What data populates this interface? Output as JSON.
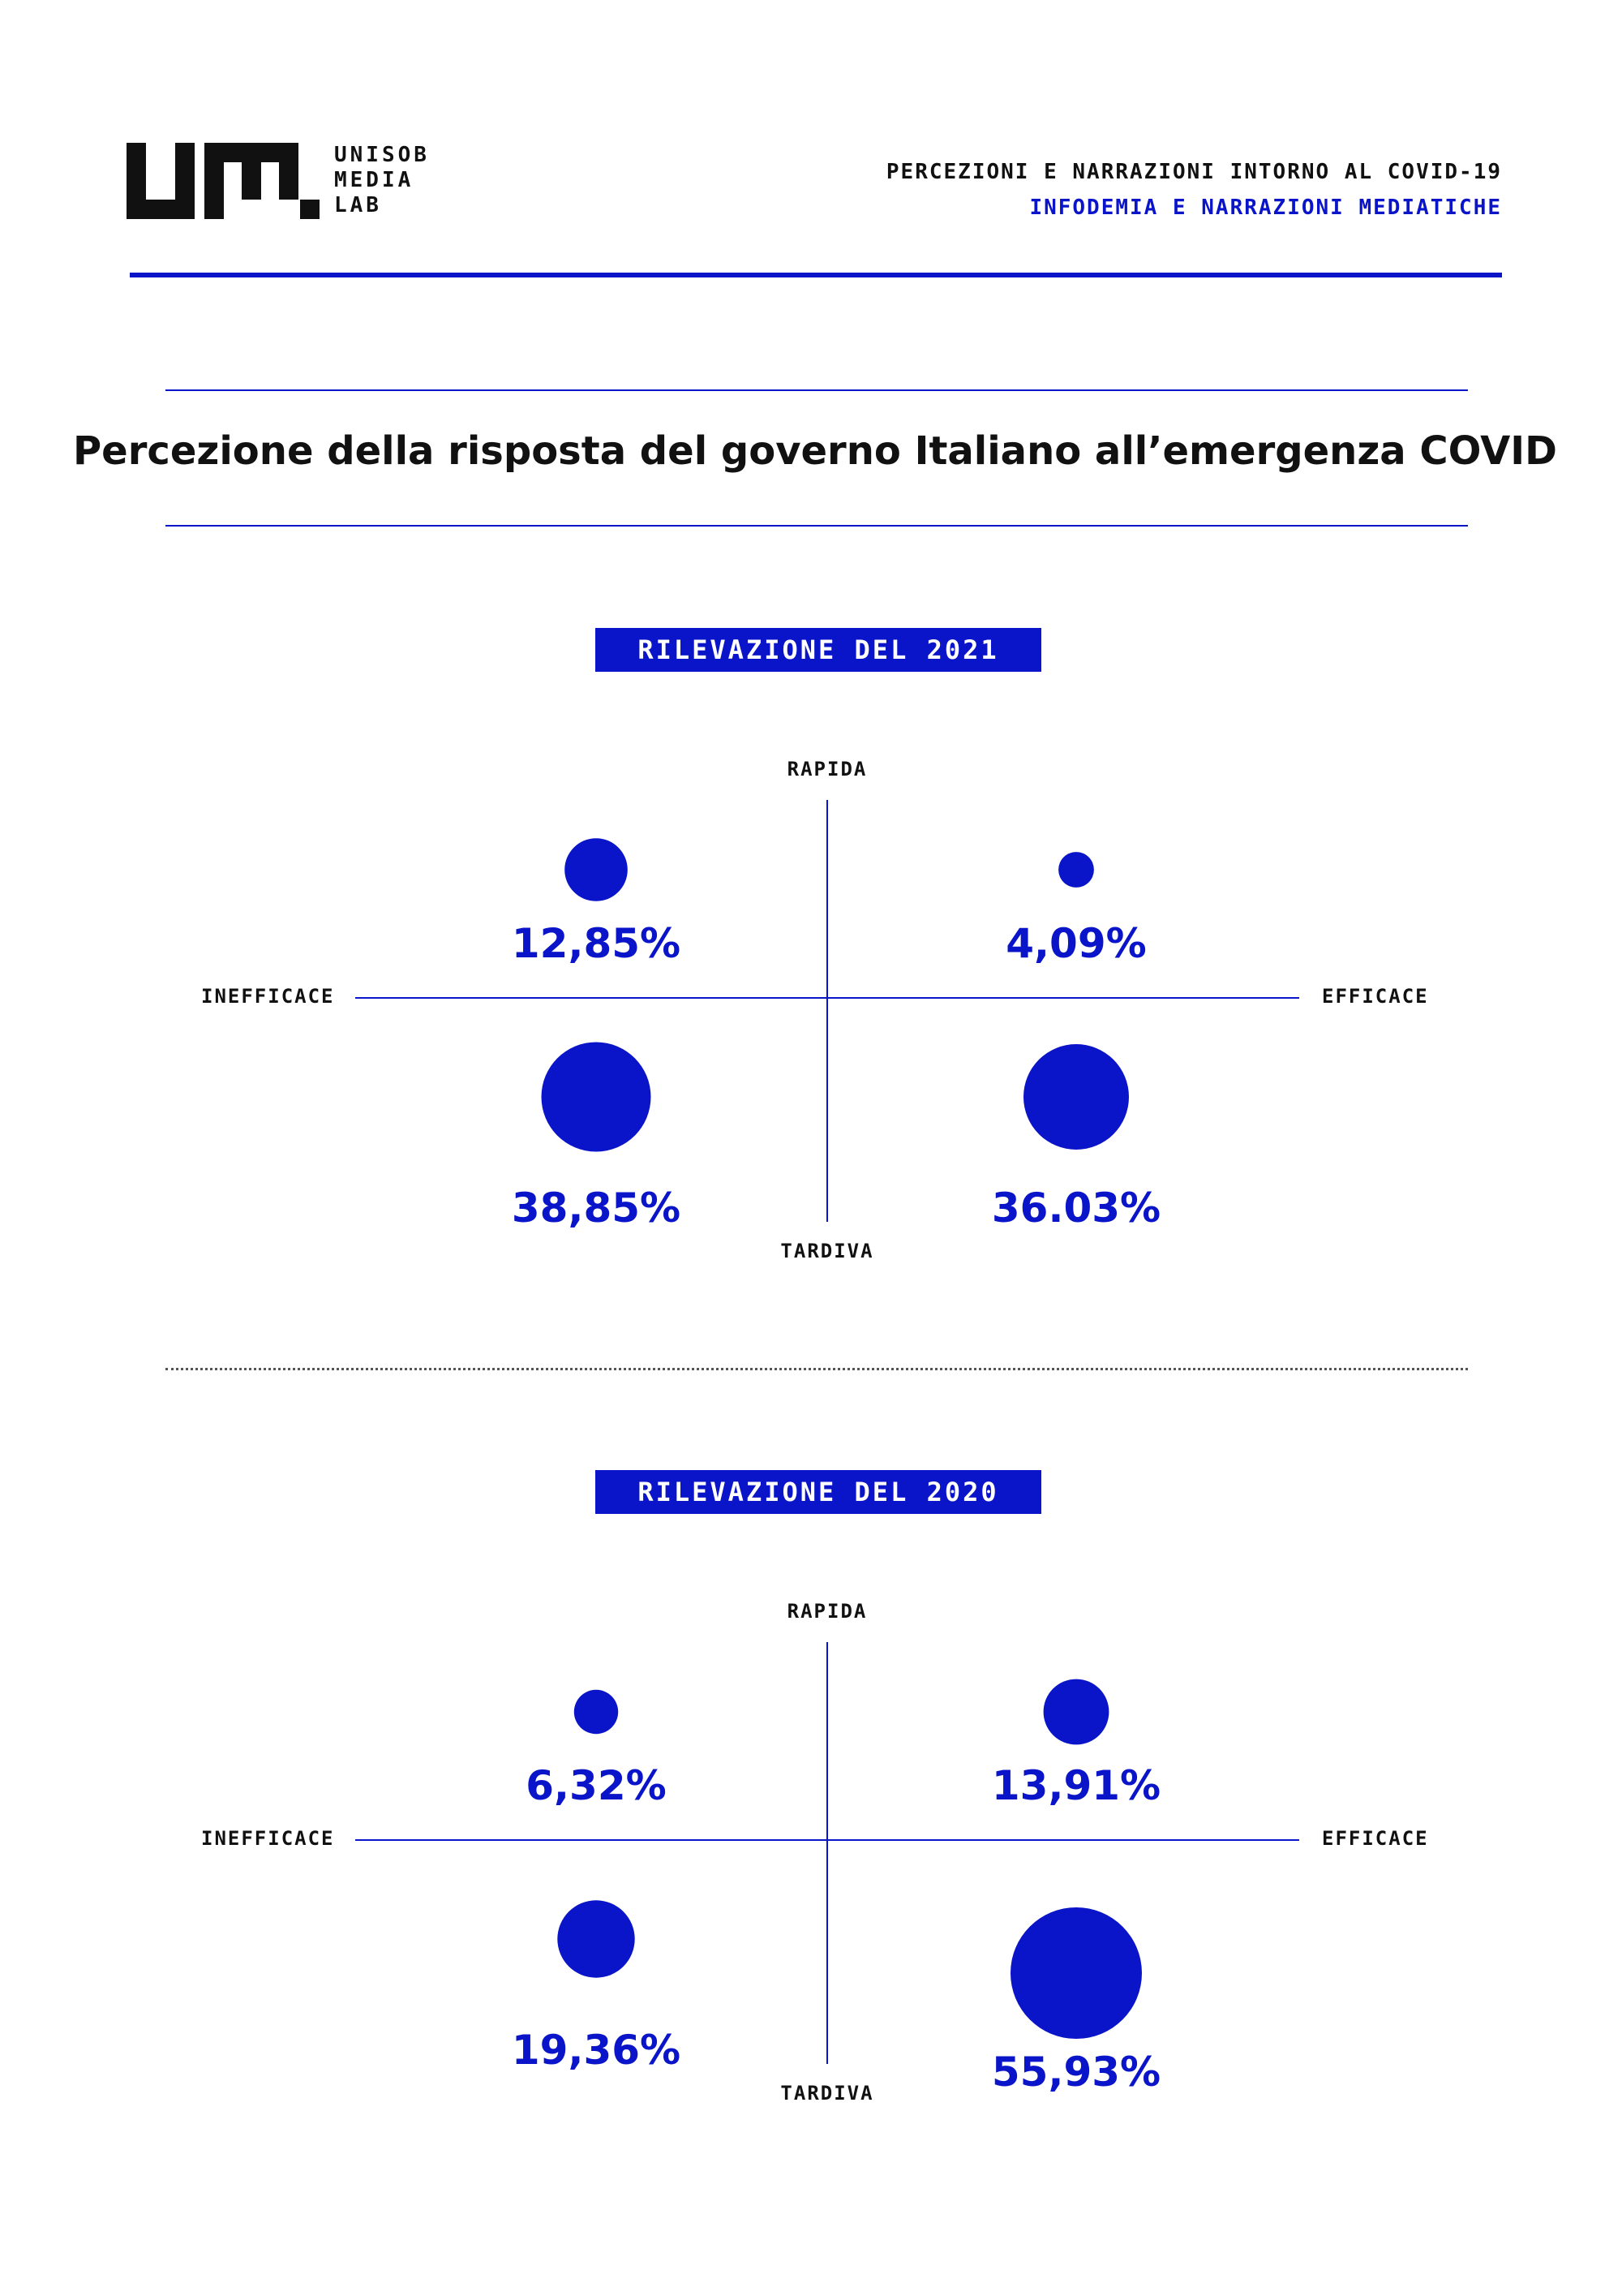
{
  "header": {
    "logo_lines": [
      "UNISOB",
      "MEDIA",
      "LAB"
    ],
    "subtitle_line1": "PERCEZIONI E NARRAZIONI INTORNO AL COVID-19",
    "subtitle_line2": "INFODEMIA E NARRAZIONI MEDIATICHE"
  },
  "title": "Percezione della risposta del governo Italiano all’emergenza COVID",
  "colors": {
    "accent": "#0a14c8",
    "text": "#111111",
    "background": "#ffffff"
  },
  "chart_data": [
    {
      "type": "scatter",
      "title": "RILEVAZIONE DEL 2021",
      "axis_labels": {
        "top": "RAPIDA",
        "bottom": "TARDIVA",
        "left": "INEFFICACE",
        "right": "EFFICACE"
      },
      "points": [
        {
          "quadrant": "rapida-inefficace",
          "value": 12.85,
          "label": "12,85%"
        },
        {
          "quadrant": "rapida-efficace",
          "value": 4.09,
          "label": "4,09%"
        },
        {
          "quadrant": "tardiva-inefficace",
          "value": 38.85,
          "label": "38,85%"
        },
        {
          "quadrant": "tardiva-efficace",
          "value": 36.03,
          "label": "36.03%"
        }
      ]
    },
    {
      "type": "scatter",
      "title": "RILEVAZIONE DEL 2020",
      "axis_labels": {
        "top": "RAPIDA",
        "bottom": "TARDIVA",
        "left": "INEFFICACE",
        "right": "EFFICACE"
      },
      "points": [
        {
          "quadrant": "rapida-inefficace",
          "value": 6.32,
          "label": "6,32%"
        },
        {
          "quadrant": "rapida-efficace",
          "value": 13.91,
          "label": "13,91%"
        },
        {
          "quadrant": "tardiva-inefficace",
          "value": 19.36,
          "label": "19,36%"
        },
        {
          "quadrant": "tardiva-efficace",
          "value": 55.93,
          "label": "55,93%"
        }
      ]
    }
  ]
}
